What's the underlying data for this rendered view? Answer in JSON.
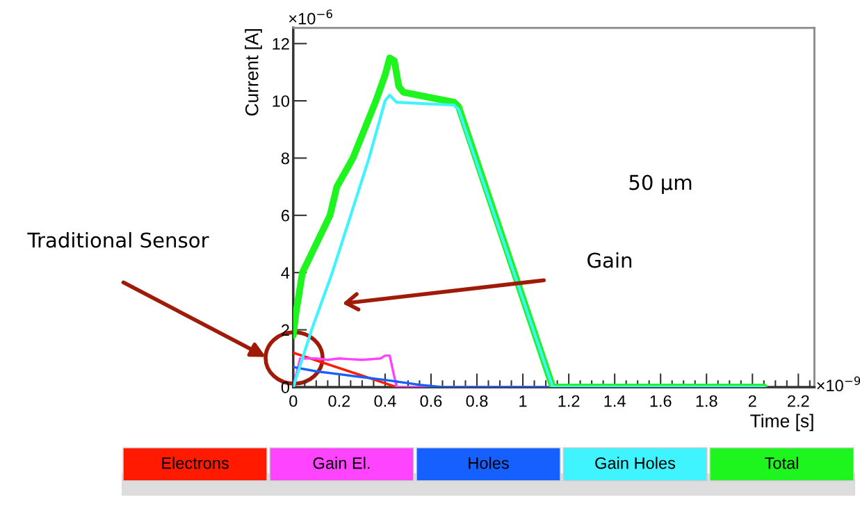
{
  "chart_data": {
    "type": "line",
    "xlabel": "Time [s]",
    "ylabel": "Current [A]",
    "xlim": [
      0,
      2.27
    ],
    "ylim": [
      0,
      12.55
    ],
    "xticks": [
      0,
      0.2,
      0.4,
      0.6,
      0.8,
      1,
      1.2,
      1.4,
      1.6,
      1.8,
      2,
      2.2
    ],
    "yticks": [
      0,
      2,
      4,
      6,
      8,
      10,
      12
    ],
    "legend": "bottom",
    "grid": false,
    "marker": "none",
    "line_style": "solid",
    "annotations": [
      "×10$^{−6}$",
      "×10$^{−9}$",
      "50 µm",
      "Gain",
      "Traditional Sensor"
    ],
    "series": [
      {
        "name": "Electrons",
        "color": "#ff1a00",
        "x": [
          0,
          0.45
        ],
        "values": [
          1.2,
          0
        ]
      },
      {
        "name": "Gain El.",
        "color": "#ff44ff",
        "x": [
          0,
          0.03,
          0.1,
          0.15,
          0.2,
          0.3,
          0.38,
          0.4,
          0.42,
          0.45,
          1.1
        ],
        "values": [
          0,
          1.0,
          1.0,
          0.95,
          1.0,
          0.95,
          1.0,
          1.1,
          1.1,
          0,
          0
        ]
      },
      {
        "name": "Holes",
        "color": "#1560ff",
        "x": [
          0,
          0.1,
          0.2,
          0.4,
          0.55,
          0.65,
          2.05
        ],
        "values": [
          0.7,
          0.55,
          0.45,
          0.25,
          0.08,
          0,
          0
        ]
      },
      {
        "name": "Gain Holes",
        "color": "#3ff4ff",
        "x": [
          0,
          0.08,
          0.17,
          0.25,
          0.33,
          0.4,
          0.42,
          0.45,
          0.7,
          0.72,
          1.13,
          2.05
        ],
        "values": [
          0,
          2,
          4,
          6,
          8,
          10,
          10.2,
          9.95,
          9.85,
          9.7,
          0,
          0
        ]
      },
      {
        "name": "Total",
        "color": "#1ef51e",
        "x": [
          0,
          0.01,
          0.04,
          0.1,
          0.16,
          0.19,
          0.26,
          0.31,
          0.36,
          0.4,
          0.42,
          0.44,
          0.46,
          0.48,
          0.7,
          0.72,
          1.13,
          2.05
        ],
        "values": [
          1.8,
          2.5,
          4,
          5,
          6,
          7,
          8,
          9,
          10,
          10.9,
          11.5,
          11.4,
          10.5,
          10.3,
          9.95,
          9.8,
          0,
          0
        ]
      }
    ]
  }
}
